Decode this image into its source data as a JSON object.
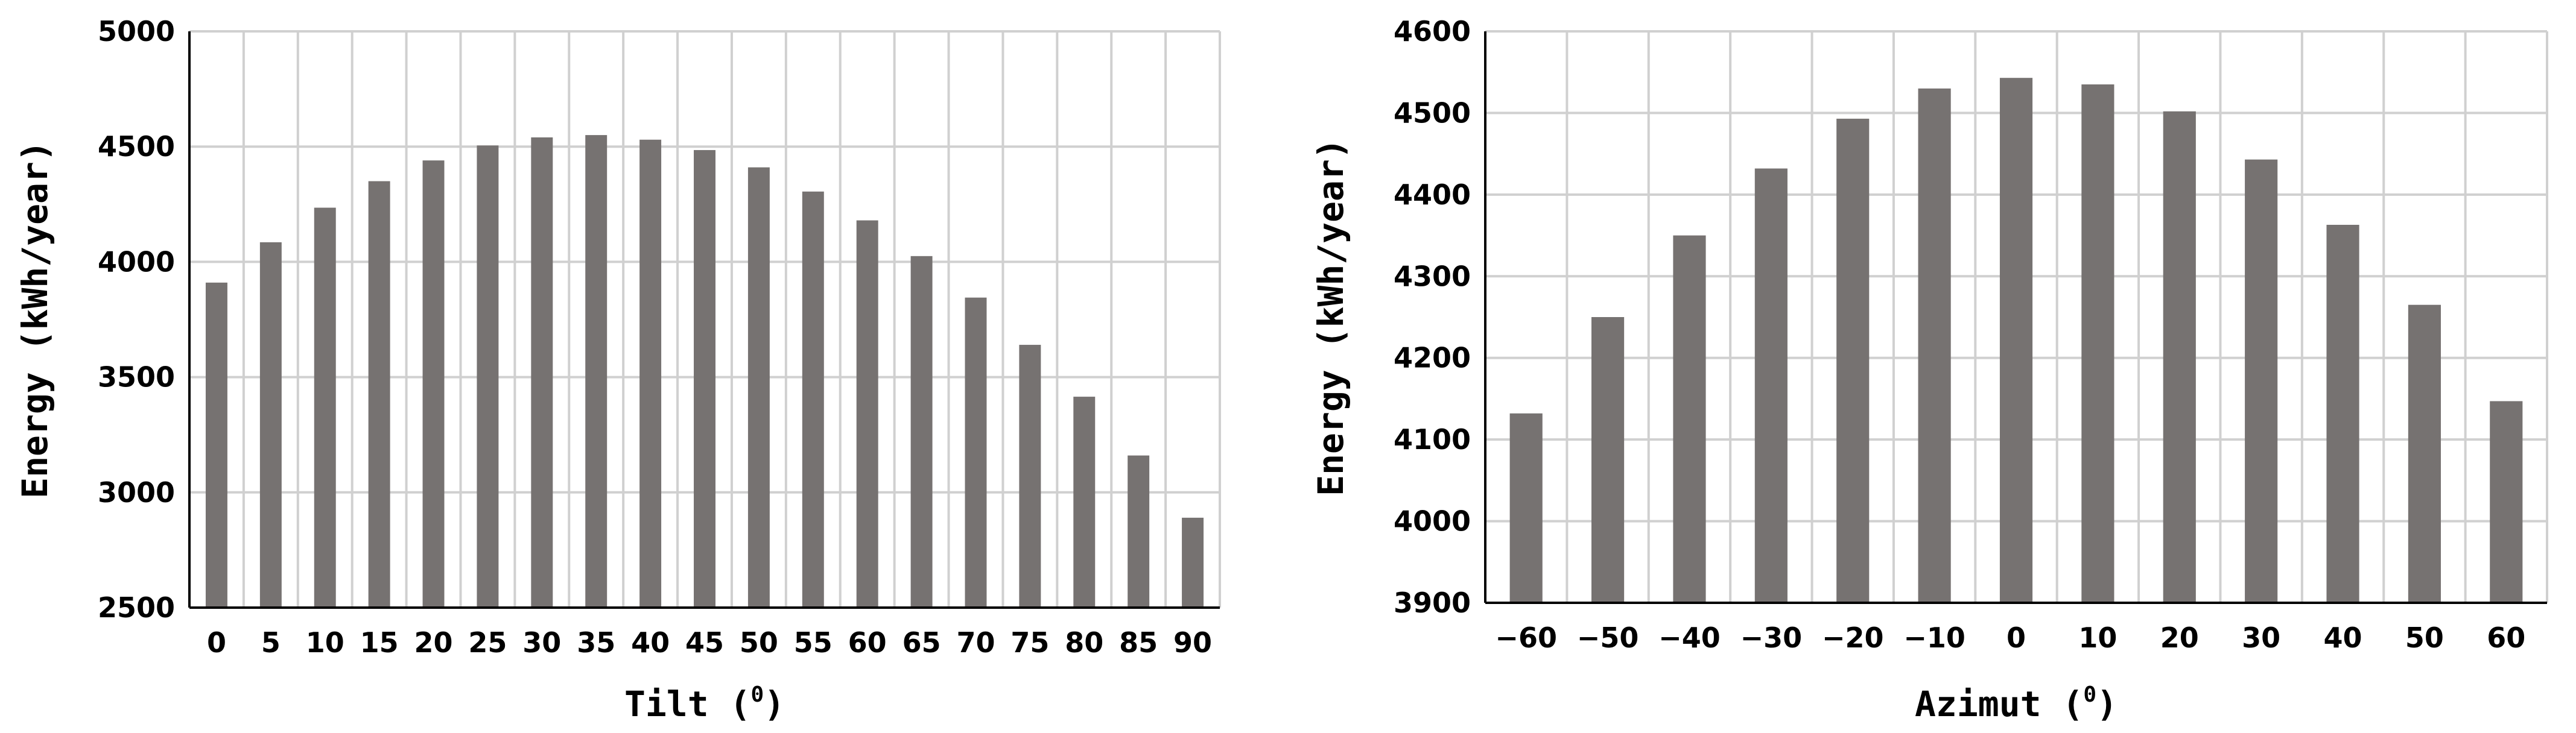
{
  "chart_data": [
    {
      "type": "bar",
      "categories": [
        "0",
        "5",
        "10",
        "15",
        "20",
        "25",
        "30",
        "35",
        "40",
        "45",
        "50",
        "55",
        "60",
        "65",
        "70",
        "75",
        "80",
        "85",
        "90"
      ],
      "values": [
        3910,
        4085,
        4235,
        4350,
        4440,
        4505,
        4540,
        4550,
        4530,
        4485,
        4410,
        4305,
        4180,
        4025,
        3845,
        3640,
        3415,
        3160,
        2890
      ],
      "title": "",
      "xlabel": "Tilt (",
      "xlabel_sup": "0",
      "xlabel_suffix": ")",
      "ylabel": "Energy (kWh/year)",
      "ylim": [
        2500,
        5000
      ],
      "yticks": [
        2500,
        3000,
        3500,
        4000,
        4500,
        5000
      ],
      "grid": true,
      "bar_color": "#767271"
    },
    {
      "type": "bar",
      "categories": [
        "-60",
        "-50",
        "-40",
        "-30",
        "-20",
        "-10",
        "0",
        "10",
        "20",
        "30",
        "40",
        "50",
        "60"
      ],
      "values": [
        4132,
        4250,
        4350,
        4432,
        4493,
        4530,
        4543,
        4535,
        4502,
        4443,
        4363,
        4265,
        4147
      ],
      "title": "",
      "xlabel": "Azimut (",
      "xlabel_sup": "0",
      "xlabel_suffix": ")",
      "ylabel": "Energy (kWh/year)",
      "ylim": [
        3900,
        4600
      ],
      "yticks": [
        3900,
        4000,
        4100,
        4200,
        4300,
        4400,
        4500,
        4600
      ],
      "grid": true,
      "bar_color": "#767271"
    }
  ]
}
